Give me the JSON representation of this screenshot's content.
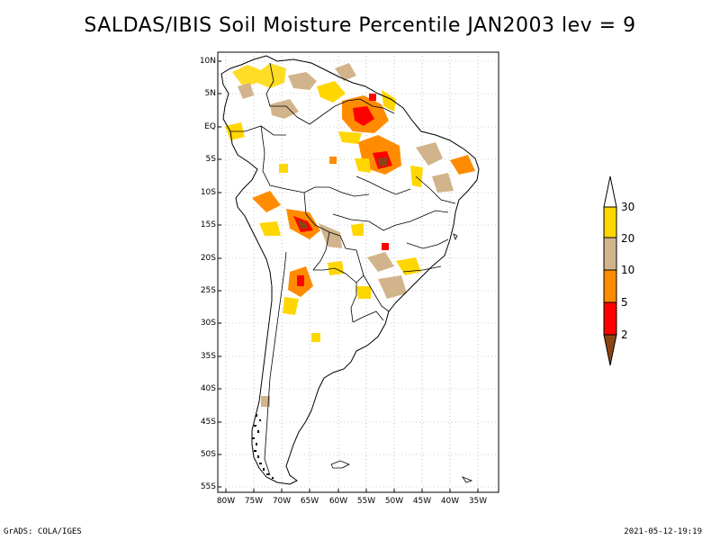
{
  "title": "SALDAS/IBIS Soil Moisture Percentile JAN2003 lev = 9",
  "map": {
    "region": "South America",
    "lat_labels": [
      "10N",
      "5N",
      "EQ",
      "5S",
      "10S",
      "15S",
      "20S",
      "25S",
      "30S",
      "35S",
      "40S",
      "45S",
      "50S",
      "55S"
    ],
    "lon_labels": [
      "80W",
      "75W",
      "70W",
      "65W",
      "60W",
      "55W",
      "50W",
      "45W",
      "40W",
      "35W"
    ],
    "grid": "dotted"
  },
  "colorbar": {
    "labels": [
      "30",
      "20",
      "10",
      "5",
      "2"
    ],
    "colors": [
      "#ffd700",
      "#d2b48c",
      "#ff8c00",
      "#ff0000",
      "#8b4513"
    ],
    "top_color": "#ffffff"
  },
  "footer": {
    "left": "GrADS: COLA/IGES",
    "right": "2021-05-12-19:19"
  }
}
